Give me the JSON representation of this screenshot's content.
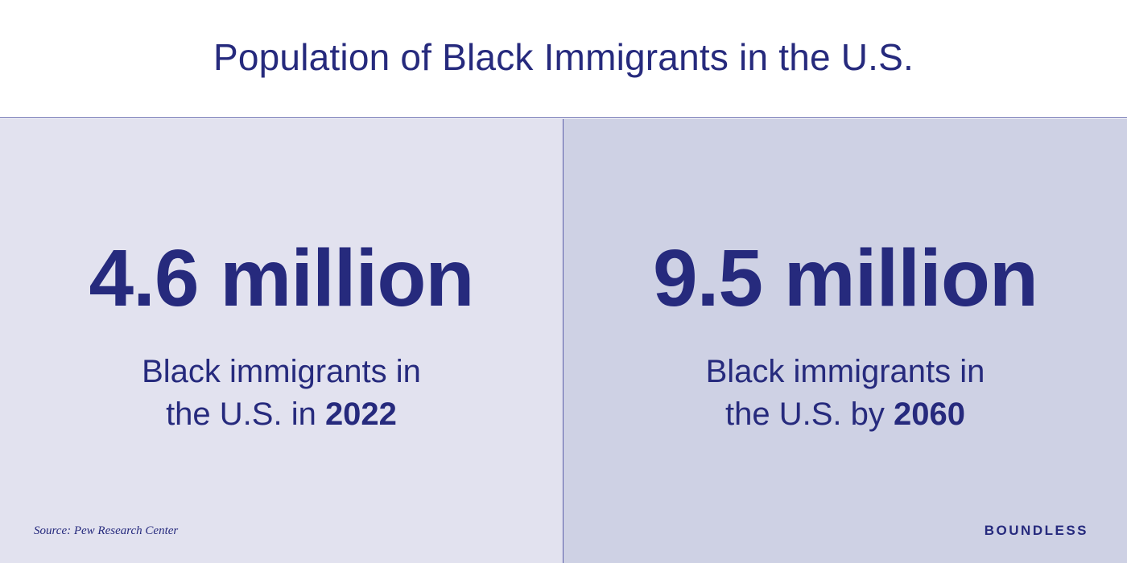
{
  "header": {
    "title": "Population of Black Immigrants in the U.S."
  },
  "panels": [
    {
      "stat": "4.6 million",
      "line1": "Black immigrants in",
      "line2_prefix": "the U.S. in ",
      "year": "2022"
    },
    {
      "stat": "9.5 million",
      "line1": "Black immigrants in",
      "line2_prefix": "the U.S. by ",
      "year": "2060"
    }
  ],
  "footer": {
    "source": "Source: Pew Research Center",
    "brand": "BOUNDLESS"
  },
  "colors": {
    "text": "#262a7d",
    "left_panel_bg": "#e2e2ef",
    "right_panel_bg": "#ced1e4",
    "divider": "#5a5ea8"
  }
}
